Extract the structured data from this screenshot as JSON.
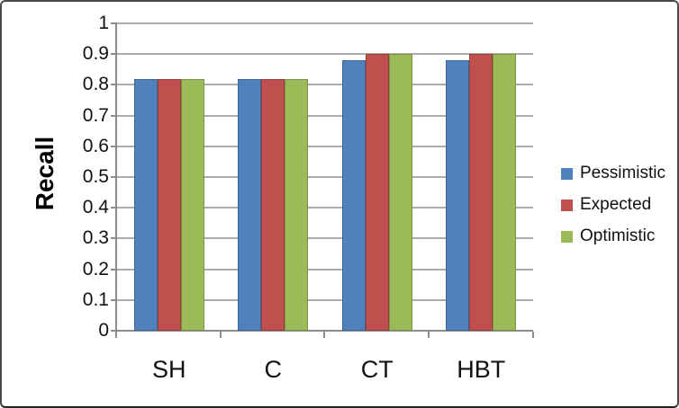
{
  "chart_data": {
    "type": "bar",
    "title": "",
    "ylabel": "Recall",
    "xlabel": "",
    "categories": [
      "SH",
      "C",
      "CT",
      "HBT"
    ],
    "series": [
      {
        "name": "Pessimistic",
        "color": "#4F81BD",
        "values": [
          0.82,
          0.82,
          0.88,
          0.88
        ]
      },
      {
        "name": "Expected",
        "color": "#C0504D",
        "values": [
          0.82,
          0.82,
          0.9,
          0.9
        ]
      },
      {
        "name": "Optimistic",
        "color": "#9BBB59",
        "values": [
          0.82,
          0.82,
          0.9,
          0.9
        ]
      }
    ],
    "ylim": [
      0,
      1
    ],
    "ytick_labels": [
      "0",
      "0.1",
      "0.2",
      "0.3",
      "0.4",
      "0.5",
      "0.6",
      "0.7",
      "0.8",
      "0.9",
      "1"
    ],
    "grid": true,
    "legend_position": "right"
  },
  "colors": {
    "gridline": "#ACACAC",
    "axis": "#8C8C8C",
    "text": "#111111",
    "frame_border": "#4A4A4A",
    "background": "#FFFFFF"
  }
}
